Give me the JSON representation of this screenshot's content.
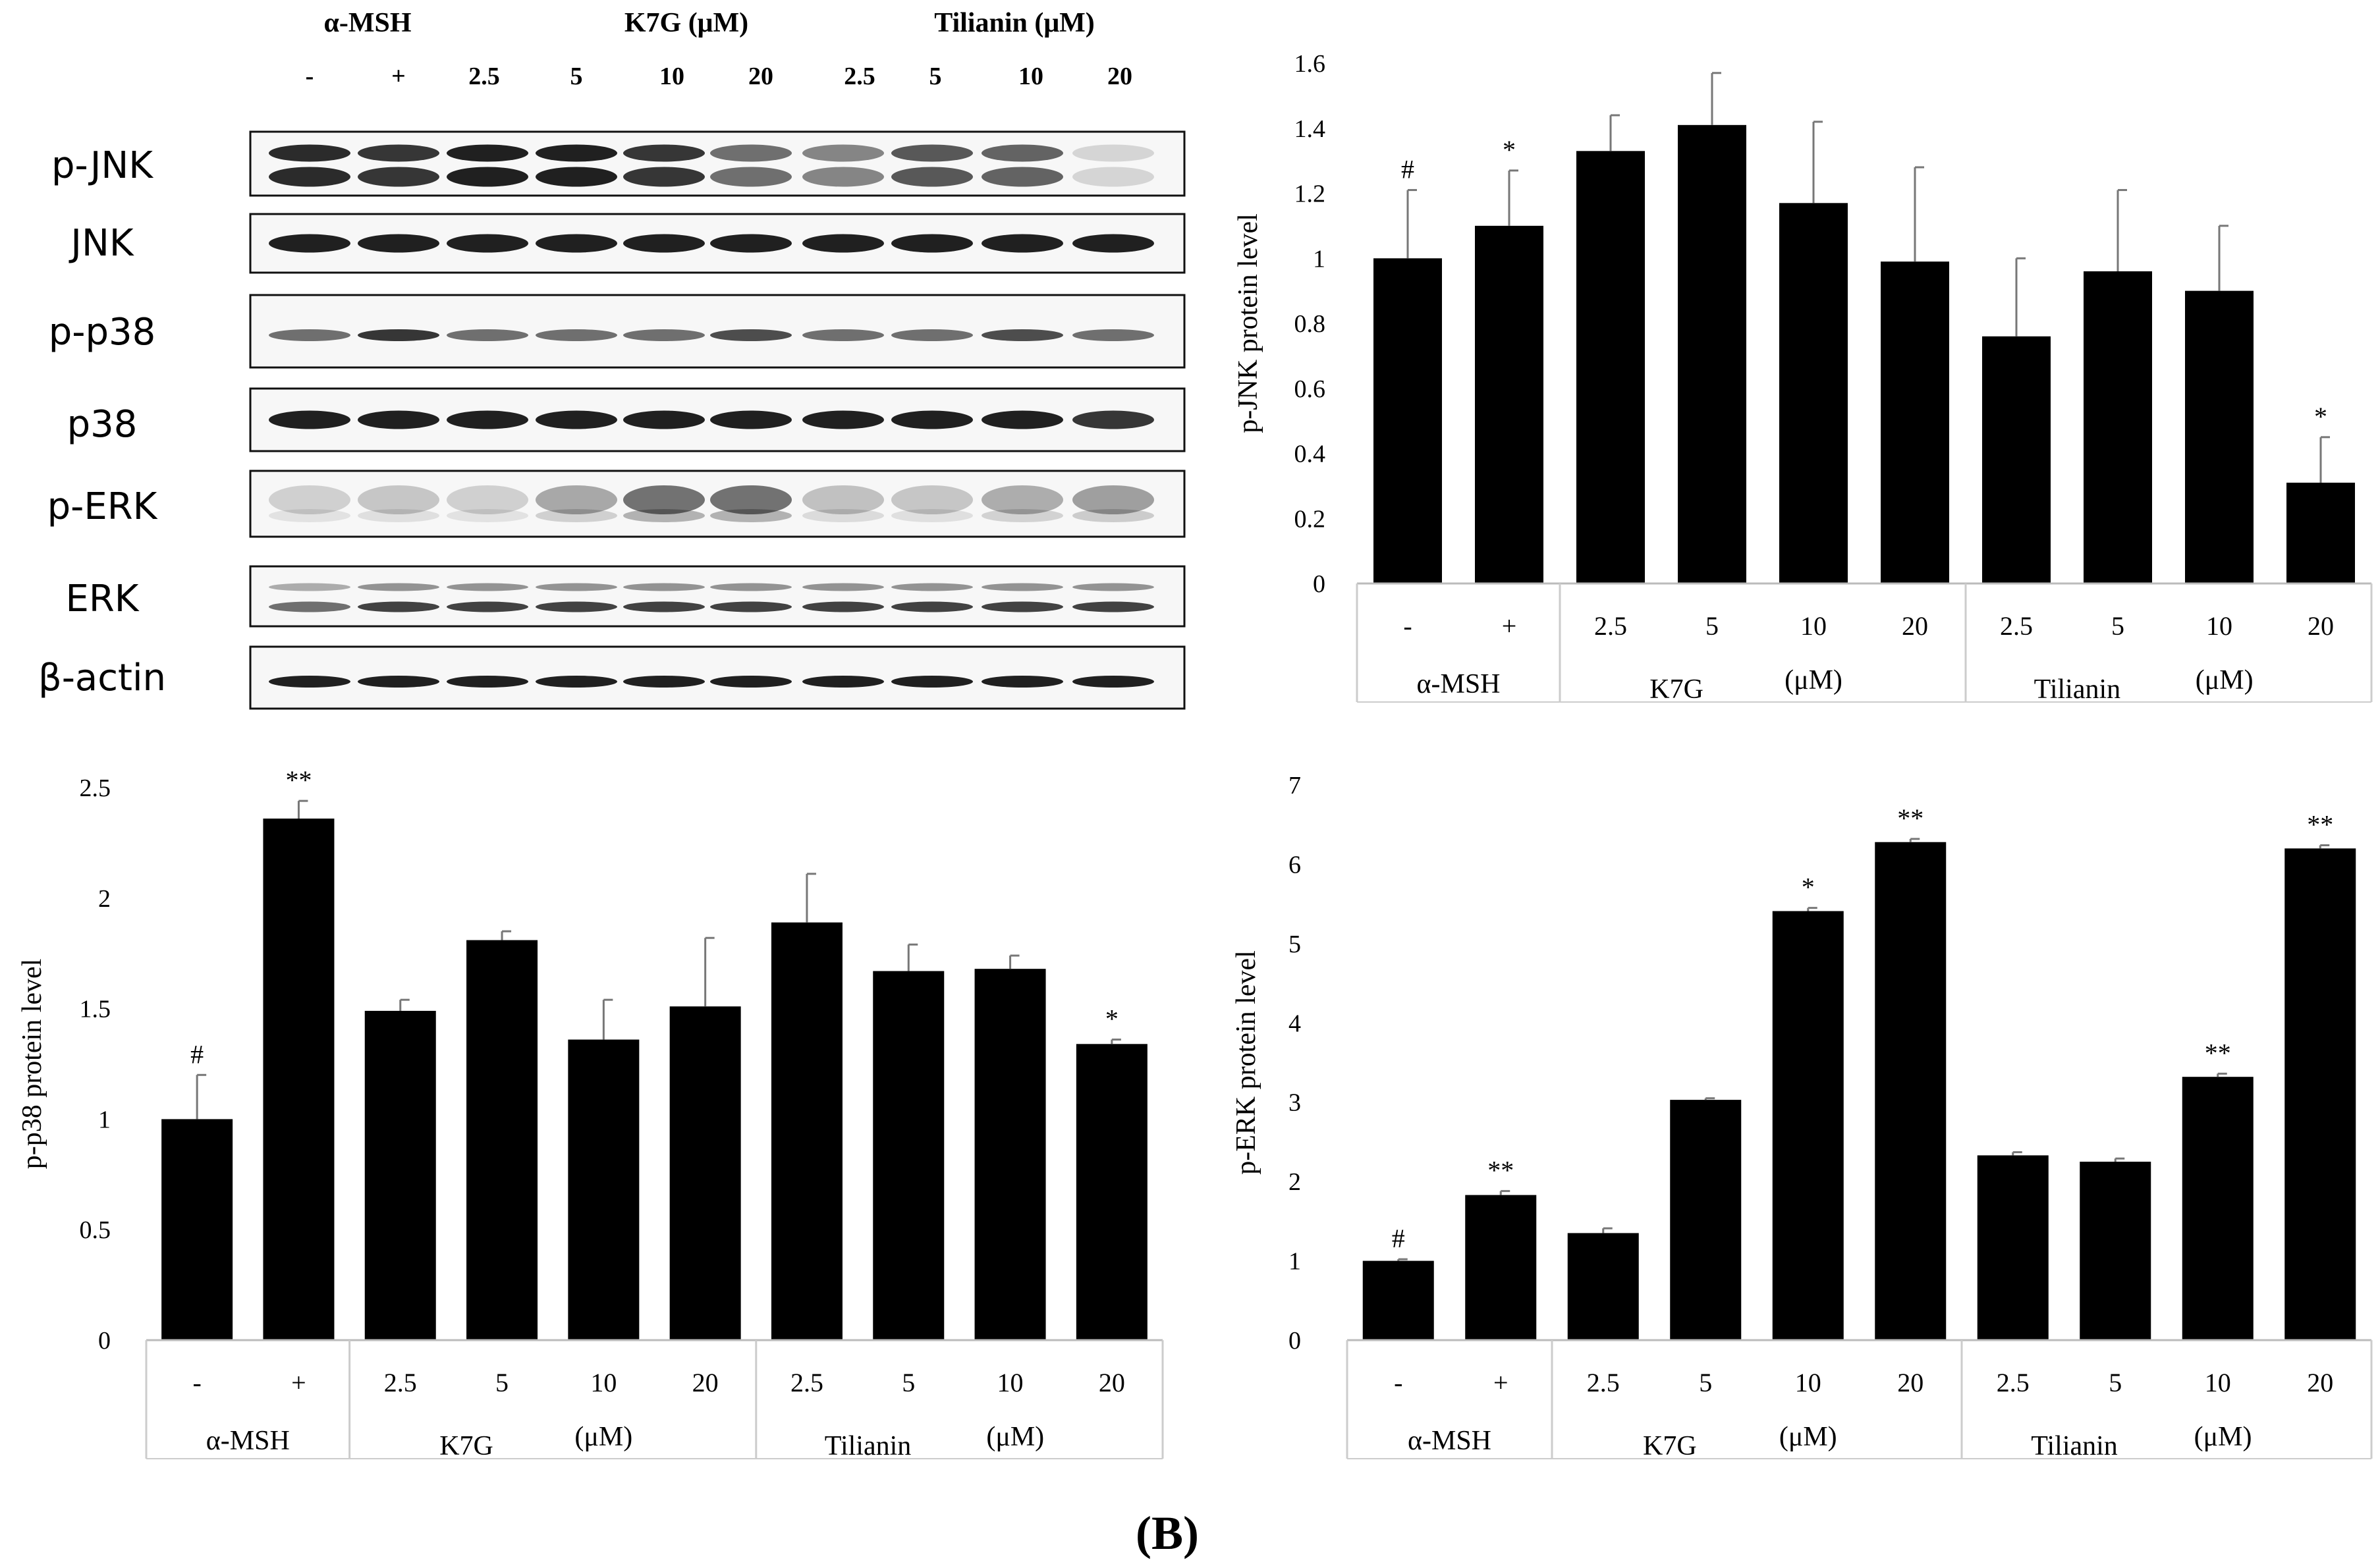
{
  "figure_label": "(B)",
  "blot": {
    "header": {
      "group_labels": [
        "α-MSH",
        "K7G (μM)",
        "Tilianin  (μM)"
      ],
      "lane_labels": [
        "-",
        "+",
        "2.5",
        "5",
        "10",
        "20",
        "2.5",
        "5",
        "10",
        "20"
      ]
    },
    "rows": [
      {
        "name": "p-JNK",
        "style": "double",
        "intensity": [
          0.9,
          0.85,
          0.95,
          0.95,
          0.85,
          0.6,
          0.5,
          0.7,
          0.65,
          0.15
        ]
      },
      {
        "name": "JNK",
        "style": "single",
        "intensity": [
          0.95,
          0.95,
          0.95,
          0.95,
          0.95,
          0.95,
          0.95,
          0.95,
          0.95,
          0.95
        ]
      },
      {
        "name": "p-p38",
        "style": "single-thin",
        "intensity": [
          0.6,
          0.85,
          0.6,
          0.6,
          0.6,
          0.75,
          0.6,
          0.6,
          0.75,
          0.6
        ]
      },
      {
        "name": "p38",
        "style": "single",
        "intensity": [
          0.95,
          0.95,
          0.95,
          0.95,
          0.95,
          0.95,
          0.95,
          0.95,
          0.95,
          0.85
        ]
      },
      {
        "name": "p-ERK",
        "style": "diffuse",
        "intensity": [
          0.25,
          0.3,
          0.25,
          0.5,
          0.85,
          0.85,
          0.35,
          0.3,
          0.45,
          0.55
        ]
      },
      {
        "name": "ERK",
        "style": "double-thin",
        "intensity": [
          0.6,
          0.8,
          0.8,
          0.8,
          0.8,
          0.8,
          0.8,
          0.8,
          0.8,
          0.8
        ]
      },
      {
        "name": "β-actin",
        "style": "single-thin",
        "intensity": [
          0.95,
          0.95,
          0.95,
          0.95,
          0.95,
          0.95,
          0.95,
          0.95,
          0.95,
          0.95
        ]
      }
    ]
  },
  "chart_data": [
    {
      "type": "bar",
      "id": "jnk",
      "ylabel": "p-JNK protein level",
      "ylim": [
        0,
        1.6
      ],
      "yticks": [
        0,
        0.2,
        0.4,
        0.6,
        0.8,
        1.0,
        1.2,
        1.4,
        1.6
      ],
      "ytick_labels": [
        "0",
        "0.2",
        "0.4",
        "0.6",
        "0.8",
        "1",
        "1.2",
        "1.4",
        "1.6"
      ],
      "categories": [
        "-",
        "+",
        "2.5",
        "5",
        "10",
        "20",
        "2.5",
        "5",
        "10",
        "20"
      ],
      "values": [
        1.0,
        1.1,
        1.33,
        1.41,
        1.17,
        0.99,
        0.76,
        0.96,
        0.9,
        0.31
      ],
      "errors": [
        0.21,
        0.17,
        0.11,
        0.16,
        0.25,
        0.29,
        0.24,
        0.25,
        0.2,
        0.14
      ],
      "annotations": [
        "#",
        "*",
        "",
        "",
        "",
        "",
        "",
        "",
        "",
        "*"
      ],
      "group_labels": [
        "α-MSH",
        "K7G",
        "(μM)",
        "Tilianin",
        "(μM)"
      ]
    },
    {
      "type": "bar",
      "id": "p38",
      "ylabel": "p-p38 protein level",
      "ylim": [
        0,
        2.5
      ],
      "yticks": [
        0,
        0.5,
        1.0,
        1.5,
        2.0,
        2.5
      ],
      "ytick_labels": [
        "0",
        "0.5",
        "1",
        "1.5",
        "2",
        "2.5"
      ],
      "categories": [
        "-",
        "+",
        "2.5",
        "5",
        "10",
        "20",
        "2.5",
        "5",
        "10",
        "20"
      ],
      "values": [
        1.0,
        2.36,
        1.49,
        1.81,
        1.36,
        1.51,
        1.89,
        1.67,
        1.68,
        1.34
      ],
      "errors": [
        0.2,
        0.08,
        0.05,
        0.04,
        0.18,
        0.31,
        0.22,
        0.12,
        0.06,
        0.02
      ],
      "annotations": [
        "#",
        "**",
        "",
        "",
        "",
        "",
        "",
        "",
        "",
        "*"
      ],
      "group_labels": [
        "α-MSH",
        "K7G",
        "(μM)",
        "Tilianin",
        "(μM)"
      ]
    },
    {
      "type": "bar",
      "id": "erk",
      "ylabel": "p-ERK protein level",
      "ylim": [
        0,
        7
      ],
      "yticks": [
        0,
        1,
        2,
        3,
        4,
        5,
        6,
        7
      ],
      "ytick_labels": [
        "0",
        "1",
        "2",
        "3",
        "4",
        "5",
        "6",
        "7"
      ],
      "categories": [
        "-",
        "+",
        "2.5",
        "5",
        "10",
        "20",
        "2.5",
        "5",
        "10",
        "20"
      ],
      "values": [
        1.0,
        1.83,
        1.35,
        3.03,
        5.41,
        6.28,
        2.33,
        2.25,
        3.32,
        6.2
      ],
      "errors": [
        0.02,
        0.05,
        0.06,
        0.02,
        0.04,
        0.04,
        0.04,
        0.04,
        0.04,
        0.04
      ],
      "annotations": [
        "#",
        "**",
        "",
        "",
        "*",
        "**",
        "",
        "",
        "**",
        "**"
      ],
      "group_labels": [
        "α-MSH",
        "K7G",
        "(μM)",
        "Tilianin",
        "(μM)"
      ]
    }
  ]
}
